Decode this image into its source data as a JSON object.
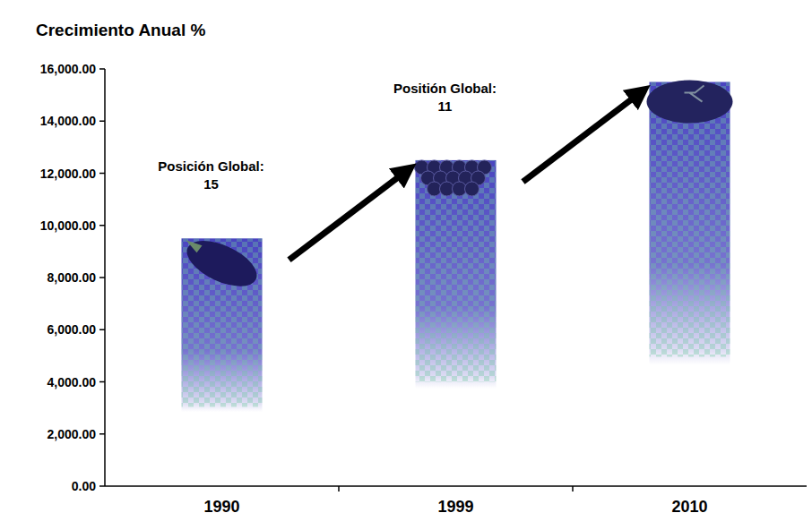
{
  "chart_data": {
    "type": "bar",
    "title": "Crecimiento Anual %",
    "categories": [
      "1990",
      "1999",
      "2010"
    ],
    "values": [
      9500,
      12500,
      15500
    ],
    "color": "#4a44c0",
    "ylim": [
      0,
      16000
    ],
    "yticks": [
      {
        "value": 0,
        "label": "0.00"
      },
      {
        "value": 2000,
        "label": "2,000.00"
      },
      {
        "value": 4000,
        "label": "4,000.00"
      },
      {
        "value": 6000,
        "label": "6,000.00"
      },
      {
        "value": 8000,
        "label": "8,000.00"
      },
      {
        "value": 10000,
        "label": "10,000.00"
      },
      {
        "value": 12000,
        "label": "12,000.00"
      },
      {
        "value": 14000,
        "label": "14,000.00"
      },
      {
        "value": 16000,
        "label": "16,000.00"
      }
    ],
    "grid": false,
    "annotations": [
      {
        "x": "1990",
        "text": "Posición Global:",
        "value": 15
      },
      {
        "x": "1999",
        "text": "Positión Global:",
        "value": 11
      }
    ]
  }
}
